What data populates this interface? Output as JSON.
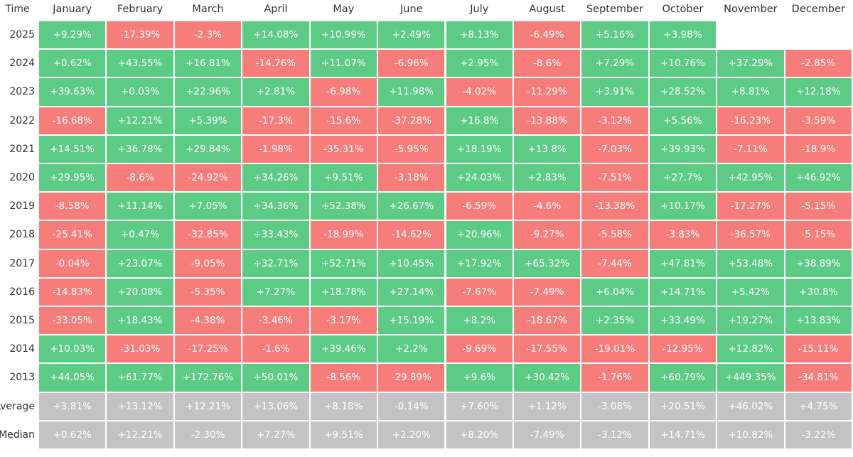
{
  "header": {
    "label": "Time",
    "months": [
      "January",
      "February",
      "March",
      "April",
      "May",
      "June",
      "July",
      "August",
      "September",
      "October",
      "November",
      "December"
    ]
  },
  "rows": [
    {
      "label": "2025",
      "values": [
        "+9.29%",
        "-17.39%",
        "-2.3%",
        "+14.08%",
        "+10.99%",
        "+2.49%",
        "+8.13%",
        "-6.49%",
        "+5.16%",
        "+3.98%"
      ]
    },
    {
      "label": "2024",
      "values": [
        "+0.62%",
        "+43.55%",
        "+16.81%",
        "-14.76%",
        "+11.07%",
        "-6.96%",
        "+2.95%",
        "-8.6%",
        "+7.29%",
        "+10.76%",
        "+37.29%",
        "-2.85%"
      ]
    },
    {
      "label": "2023",
      "values": [
        "+39.63%",
        "+0.03%",
        "+22.96%",
        "+2.81%",
        "-6.98%",
        "+11.98%",
        "-4.02%",
        "-11.29%",
        "+3.91%",
        "+28.52%",
        "+8.81%",
        "+12.18%"
      ]
    },
    {
      "label": "2022",
      "values": [
        "-16.68%",
        "+12.21%",
        "+5.39%",
        "-17.3%",
        "-15.6%",
        "-37.28%",
        "+16.8%",
        "-13.88%",
        "-3.12%",
        "+5.56%",
        "-16.23%",
        "-3.59%"
      ]
    },
    {
      "label": "2021",
      "values": [
        "+14.51%",
        "+36.78%",
        "+29.84%",
        "-1.98%",
        "-35.31%",
        "-5.95%",
        "+18.19%",
        "+13.8%",
        "-7.03%",
        "+39.93%",
        "-7.11%",
        "-18.9%"
      ]
    },
    {
      "label": "2020",
      "values": [
        "+29.95%",
        "-8.6%",
        "-24.92%",
        "+34.26%",
        "+9.51%",
        "-3.18%",
        "+24.03%",
        "+2.83%",
        "-7.51%",
        "+27.7%",
        "+42.95%",
        "+46.92%"
      ]
    },
    {
      "label": "2019",
      "values": [
        "-8.58%",
        "+11.14%",
        "+7.05%",
        "+34.36%",
        "+52.38%",
        "+26.67%",
        "-6.59%",
        "-4.6%",
        "-13.38%",
        "+10.17%",
        "-17.27%",
        "-5.15%"
      ]
    },
    {
      "label": "2018",
      "values": [
        "-25.41%",
        "+0.47%",
        "-32.85%",
        "+33.43%",
        "-18.99%",
        "-14.62%",
        "+20.96%",
        "-9.27%",
        "-5.58%",
        "-3.83%",
        "-36.57%",
        "-5.15%"
      ]
    },
    {
      "label": "2017",
      "values": [
        "-0.04%",
        "+23.07%",
        "-9.05%",
        "+32.71%",
        "+52.71%",
        "+10.45%",
        "+17.92%",
        "+65.32%",
        "-7.44%",
        "+47.81%",
        "+53.48%",
        "+38.89%"
      ]
    },
    {
      "label": "2016",
      "values": [
        "-14.83%",
        "+20.08%",
        "-5.35%",
        "+7.27%",
        "+18.78%",
        "+27.14%",
        "-7.67%",
        "-7.49%",
        "+6.04%",
        "+14.71%",
        "+5.42%",
        "+30.8%"
      ]
    },
    {
      "label": "2015",
      "values": [
        "-33.05%",
        "+18.43%",
        "-4.38%",
        "-3.46%",
        "-3.17%",
        "+15.19%",
        "+8.2%",
        "-18.67%",
        "+2.35%",
        "+33.49%",
        "+19.27%",
        "+13.83%"
      ]
    },
    {
      "label": "2014",
      "values": [
        "+10.03%",
        "-31.03%",
        "-17.25%",
        "-1.6%",
        "+39.46%",
        "+2.2%",
        "-9.69%",
        "-17.55%",
        "-19.01%",
        "-12.95%",
        "+12.82%",
        "-15.11%"
      ]
    },
    {
      "label": "2013",
      "values": [
        "+44.05%",
        "+61.77%",
        "+172.76%",
        "+50.01%",
        "-8.56%",
        "-29.89%",
        "+9.6%",
        "+30.42%",
        "-1.76%",
        "+60.79%",
        "+449.35%",
        "-34.81%"
      ]
    }
  ],
  "summary_rows": [
    {
      "label": "Average",
      "values": [
        "+3.81%",
        "+13.12%",
        "+12.21%",
        "+13.06%",
        "+8.18%",
        "-0.14%",
        "+7.60%",
        "+1.12%",
        "-3.08%",
        "+20.51%",
        "+46.02%",
        "+4.75%"
      ]
    },
    {
      "label": "Median",
      "values": [
        "+0.62%",
        "+12.21%",
        "-2.30%",
        "+7.27%",
        "+9.51%",
        "+2.20%",
        "+8.20%",
        "-7.49%",
        "-3.12%",
        "+14.71%",
        "+10.82%",
        "-3.22%"
      ]
    }
  ]
}
